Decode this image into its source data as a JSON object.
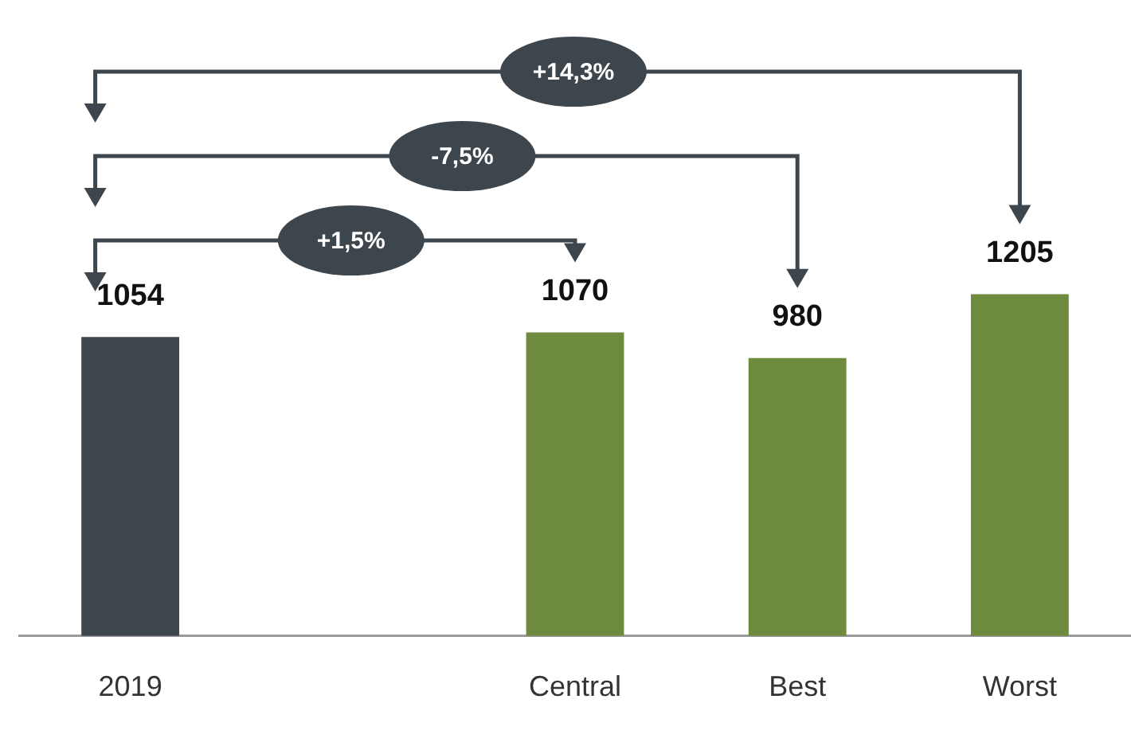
{
  "chart_data": {
    "type": "bar",
    "categories": [
      "2019",
      null,
      "Central",
      "Best",
      "Worst"
    ],
    "values": [
      1054,
      null,
      1070,
      980,
      1205
    ],
    "colors": [
      "#3d454d",
      null,
      "#6e8b3d",
      "#6e8b3d",
      "#6e8b3d"
    ],
    "data_labels": true,
    "annotations": [
      "+14,3%",
      "-7,5%",
      "+1,5%"
    ]
  }
}
